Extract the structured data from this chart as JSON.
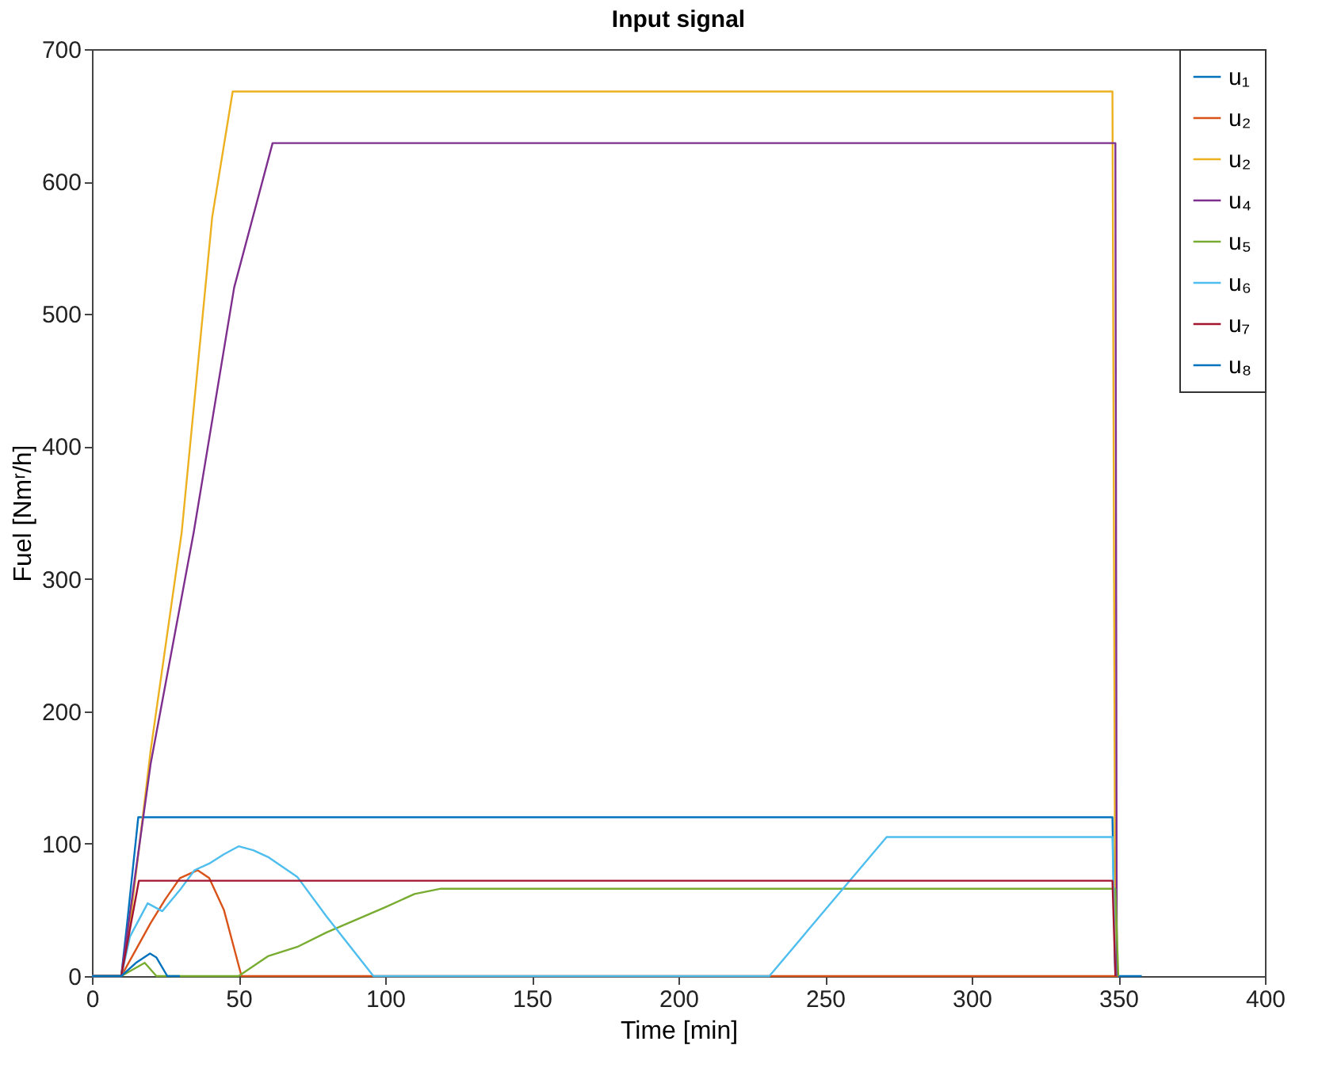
{
  "chart_data": {
    "type": "line",
    "title": "Input signal",
    "xlabel": "Time [min]",
    "ylabel": "Fuel [Nmʳ/h]",
    "xlim": [
      0,
      400
    ],
    "xticks": [
      0,
      50,
      100,
      150,
      200,
      250,
      300,
      350,
      400
    ],
    "ylim": [
      0,
      700
    ],
    "yticks": [
      0,
      100,
      200,
      300,
      400,
      500,
      600,
      700
    ],
    "grid": false,
    "legend": "top right",
    "line_style": "solid",
    "marker": "none",
    "series": [
      {
        "name": "u₁",
        "color": "#0072bd",
        "x": [
          0,
          10,
          12,
          15.8,
          348,
          349,
          358
        ],
        "values": [
          0,
          0,
          40,
          120,
          120,
          0,
          0
        ]
      },
      {
        "name": "u₂",
        "color": "#d95319",
        "x": [
          0,
          10,
          15,
          20,
          25,
          30,
          36,
          40,
          45,
          48,
          51,
          350
        ],
        "values": [
          0,
          0,
          20,
          40,
          58,
          74,
          80,
          74,
          50,
          25,
          0,
          0
        ]
      },
      {
        "name": "u₂",
        "color": "#edb120",
        "x": [
          0,
          10,
          13,
          20,
          30.6,
          41,
          48,
          348,
          349
        ],
        "values": [
          0,
          0,
          40,
          170,
          335,
          573,
          668,
          668,
          0
        ]
      },
      {
        "name": "u₄",
        "color": "#7e2f8e",
        "x": [
          0,
          10,
          15,
          20,
          34.7,
          48.5,
          61.6,
          349,
          349.5
        ],
        "values": [
          0,
          0,
          80,
          160,
          335,
          520,
          629,
          629,
          0
        ]
      },
      {
        "name": "u₅",
        "color": "#77ac30",
        "x": [
          0,
          10,
          18,
          22,
          50,
          60,
          70,
          80,
          100,
          110,
          119,
          349,
          350
        ],
        "values": [
          0,
          0,
          10,
          0,
          0,
          15,
          22,
          33,
          52,
          62,
          66,
          66,
          0
        ]
      },
      {
        "name": "u₆",
        "color": "#4dbeee",
        "x": [
          0,
          10,
          13,
          19,
          24,
          30,
          35,
          40,
          45,
          50,
          55,
          60,
          70,
          80,
          96,
          231,
          250,
          271,
          348,
          349
        ],
        "values": [
          0,
          0,
          30,
          55,
          49,
          65,
          80,
          85,
          92,
          98,
          95,
          90,
          75,
          45,
          0,
          0,
          50,
          105,
          105,
          0
        ]
      },
      {
        "name": "u₇",
        "color": "#a2142f",
        "x": [
          0,
          10,
          16,
          348,
          349
        ],
        "values": [
          0,
          0,
          72,
          72,
          0
        ]
      },
      {
        "name": "u₈",
        "color": "#0072bd",
        "x": [
          0,
          10,
          15,
          19.8,
          22,
          25.7,
          30
        ],
        "values": [
          0,
          0,
          10,
          17,
          14,
          0,
          0
        ]
      }
    ]
  }
}
